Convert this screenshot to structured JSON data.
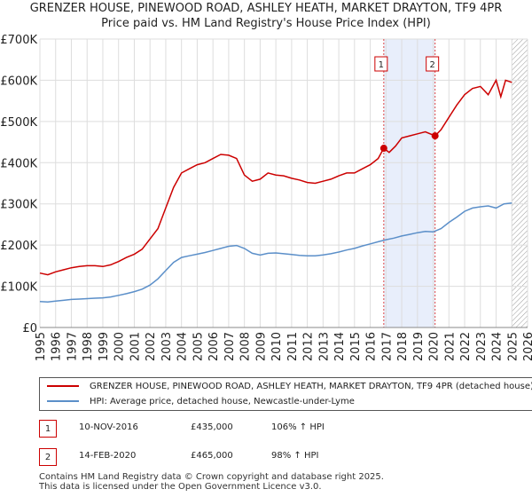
{
  "chart_data": {
    "type": "line",
    "title_line1": "GRENZER HOUSE, PINEWOOD ROAD, ASHLEY HEATH, MARKET DRAYTON, TF9 4PR",
    "title_line2": "Price paid vs. HM Land Registry's House Price Index (HPI)",
    "xlim": [
      1995,
      2026
    ],
    "ylim": [
      0,
      700000
    ],
    "x_ticks": [
      "1995",
      "1996",
      "1997",
      "1998",
      "1999",
      "2000",
      "2001",
      "2002",
      "2003",
      "2004",
      "2005",
      "2006",
      "2007",
      "2008",
      "2009",
      "2010",
      "2011",
      "2012",
      "2013",
      "2014",
      "2015",
      "2016",
      "2017",
      "2018",
      "2019",
      "2020",
      "2021",
      "2022",
      "2023",
      "2024",
      "2025",
      "2026"
    ],
    "y_ticks": [
      {
        "value": 0,
        "label": "£0"
      },
      {
        "value": 100000,
        "label": "£100K"
      },
      {
        "value": 200000,
        "label": "£200K"
      },
      {
        "value": 300000,
        "label": "£300K"
      },
      {
        "value": 400000,
        "label": "£400K"
      },
      {
        "value": 500000,
        "label": "£500K"
      },
      {
        "value": 600000,
        "label": "£600K"
      },
      {
        "value": 700000,
        "label": "£700K"
      }
    ],
    "grid": true,
    "highlight_span": [
      2016.86,
      2020.12
    ],
    "hatch_from": 2025.0,
    "series": [
      {
        "name": "GRENZER HOUSE, PINEWOOD ROAD, ASHLEY HEATH, MARKET DRAYTON, TF9 4PR (detached house)",
        "color": "#cc0000",
        "x": [
          1995.0,
          1995.5,
          1996.0,
          1996.5,
          1997.0,
          1997.5,
          1998.0,
          1998.5,
          1999.0,
          1999.5,
          2000.0,
          2000.5,
          2001.0,
          2001.5,
          2002.0,
          2002.5,
          2003.0,
          2003.5,
          2004.0,
          2004.5,
          2005.0,
          2005.5,
          2006.0,
          2006.5,
          2007.0,
          2007.5,
          2008.0,
          2008.5,
          2009.0,
          2009.5,
          2010.0,
          2010.5,
          2011.0,
          2011.5,
          2012.0,
          2012.5,
          2013.0,
          2013.5,
          2014.0,
          2014.5,
          2015.0,
          2015.5,
          2016.0,
          2016.5,
          2016.86,
          2017.2,
          2017.6,
          2018.0,
          2018.5,
          2019.0,
          2019.5,
          2020.12,
          2020.5,
          2021.0,
          2021.5,
          2022.0,
          2022.5,
          2023.0,
          2023.5,
          2024.0,
          2024.3,
          2024.6,
          2025.0
        ],
        "values": [
          132000,
          128000,
          135000,
          140000,
          145000,
          148000,
          150000,
          150000,
          148000,
          152000,
          160000,
          170000,
          178000,
          190000,
          215000,
          240000,
          290000,
          340000,
          375000,
          385000,
          395000,
          400000,
          410000,
          420000,
          418000,
          410000,
          370000,
          355000,
          360000,
          375000,
          370000,
          368000,
          362000,
          358000,
          352000,
          350000,
          355000,
          360000,
          368000,
          375000,
          375000,
          385000,
          395000,
          410000,
          435000,
          425000,
          440000,
          460000,
          465000,
          470000,
          475000,
          465000,
          480000,
          510000,
          540000,
          565000,
          580000,
          585000,
          565000,
          600000,
          560000,
          600000,
          595000
        ]
      },
      {
        "name": "HPI: Average price, detached house, Newcastle-under-Lyme",
        "color": "#5b8fc9",
        "x": [
          1995.0,
          1995.5,
          1996.0,
          1996.5,
          1997.0,
          1997.5,
          1998.0,
          1998.5,
          1999.0,
          1999.5,
          2000.0,
          2000.5,
          2001.0,
          2001.5,
          2002.0,
          2002.5,
          2003.0,
          2003.5,
          2004.0,
          2004.5,
          2005.0,
          2005.5,
          2006.0,
          2006.5,
          2007.0,
          2007.5,
          2008.0,
          2008.5,
          2009.0,
          2009.5,
          2010.0,
          2010.5,
          2011.0,
          2011.5,
          2012.0,
          2012.5,
          2013.0,
          2013.5,
          2014.0,
          2014.5,
          2015.0,
          2015.5,
          2016.0,
          2016.5,
          2017.0,
          2017.5,
          2018.0,
          2018.5,
          2019.0,
          2019.5,
          2020.0,
          2020.5,
          2021.0,
          2021.5,
          2022.0,
          2022.5,
          2023.0,
          2023.5,
          2024.0,
          2024.5,
          2025.0
        ],
        "values": [
          63000,
          62000,
          64000,
          66000,
          68000,
          69000,
          70000,
          71000,
          72000,
          74000,
          78000,
          82000,
          87000,
          93000,
          103000,
          118000,
          138000,
          158000,
          170000,
          174000,
          178000,
          182000,
          187000,
          192000,
          197000,
          199000,
          192000,
          180000,
          176000,
          180000,
          181000,
          179000,
          177000,
          175000,
          174000,
          174000,
          176000,
          179000,
          183000,
          188000,
          192000,
          198000,
          203000,
          208000,
          213000,
          217000,
          222000,
          226000,
          230000,
          233000,
          232000,
          240000,
          255000,
          268000,
          282000,
          290000,
          293000,
          295000,
          290000,
          300000,
          302000
        ]
      }
    ],
    "sale_markers": [
      {
        "label": "1",
        "x": 2016.86,
        "value": 435000
      },
      {
        "label": "2",
        "x": 2020.12,
        "value": 465000
      }
    ]
  },
  "legend": {
    "property_label": "GRENZER HOUSE, PINEWOOD ROAD, ASHLEY HEATH, MARKET DRAYTON, TF9 4PR (detached house)",
    "hpi_label": "HPI: Average price, detached house, Newcastle-under-Lyme"
  },
  "sales": [
    {
      "num": "1",
      "date": "10-NOV-2016",
      "price": "£435,000",
      "hpi": "106% ↑ HPI"
    },
    {
      "num": "2",
      "date": "14-FEB-2020",
      "price": "£465,000",
      "hpi": "98% ↑ HPI"
    }
  ],
  "footer": {
    "line1": "Contains HM Land Registry data © Crown copyright and database right 2025.",
    "line2": "This data is licensed under the Open Government Licence v3.0."
  },
  "colors": {
    "property": "#cc0000",
    "hpi": "#5b8fc9",
    "highlight": "#e8eefb",
    "grid": "#dddddd"
  }
}
